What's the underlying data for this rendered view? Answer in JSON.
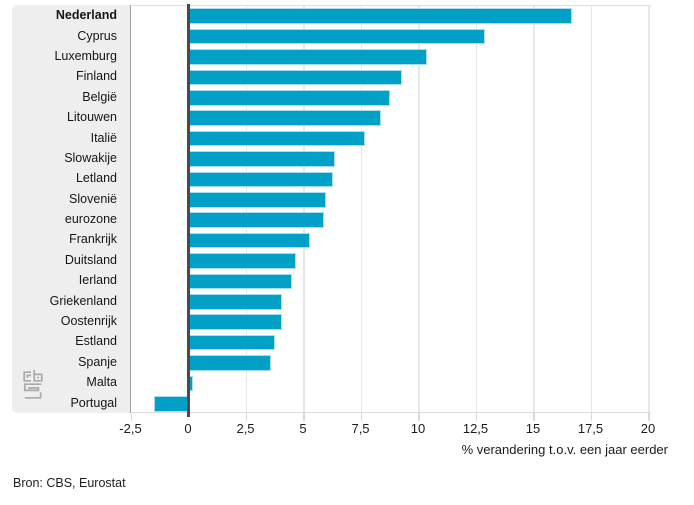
{
  "chart_data": {
    "type": "bar",
    "orientation": "horizontal",
    "title": "",
    "categories": [
      "Nederland",
      "Cyprus",
      "Luxemburg",
      "Finland",
      "België",
      "Litouwen",
      "Italië",
      "Slowakije",
      "Letland",
      "Slovenië",
      "eurozone",
      "Frankrijk",
      "Duitsland",
      "Ierland",
      "Griekenland",
      "Oostenrijk",
      "Estland",
      "Spanje",
      "Malta",
      "Portugal"
    ],
    "values": [
      16.7,
      12.9,
      10.4,
      9.3,
      8.8,
      8.4,
      7.7,
      6.4,
      6.3,
      6.0,
      5.9,
      5.3,
      4.7,
      4.5,
      4.1,
      4.1,
      3.8,
      3.6,
      0.2,
      -1.5
    ],
    "highlight_category": "Nederland",
    "xlabel": "% verandering t.o.v. een jaar eerder",
    "ylabel": "",
    "xlim": [
      -2.5,
      20
    ],
    "xticks": [
      -2.5,
      0,
      2.5,
      5,
      7.5,
      10,
      12.5,
      15,
      17.5,
      20
    ],
    "xtick_labels": [
      "-2,5",
      "0",
      "2,5",
      "5",
      "7,5",
      "10",
      "12,5",
      "15",
      "17,5",
      "20"
    ],
    "grid": true,
    "legend": false,
    "colors": {
      "bar": "#00a0c7",
      "bar_border": "#a9dcee",
      "zero_line": "#4a4a4a",
      "gridline": "#e7e7e7",
      "label_panel_bg": "#eeeeee",
      "label_panel_border": "#9e9e9e"
    }
  },
  "source": {
    "label": "Bron: CBS, Eurostat"
  },
  "logo": {
    "name": "CBS"
  }
}
